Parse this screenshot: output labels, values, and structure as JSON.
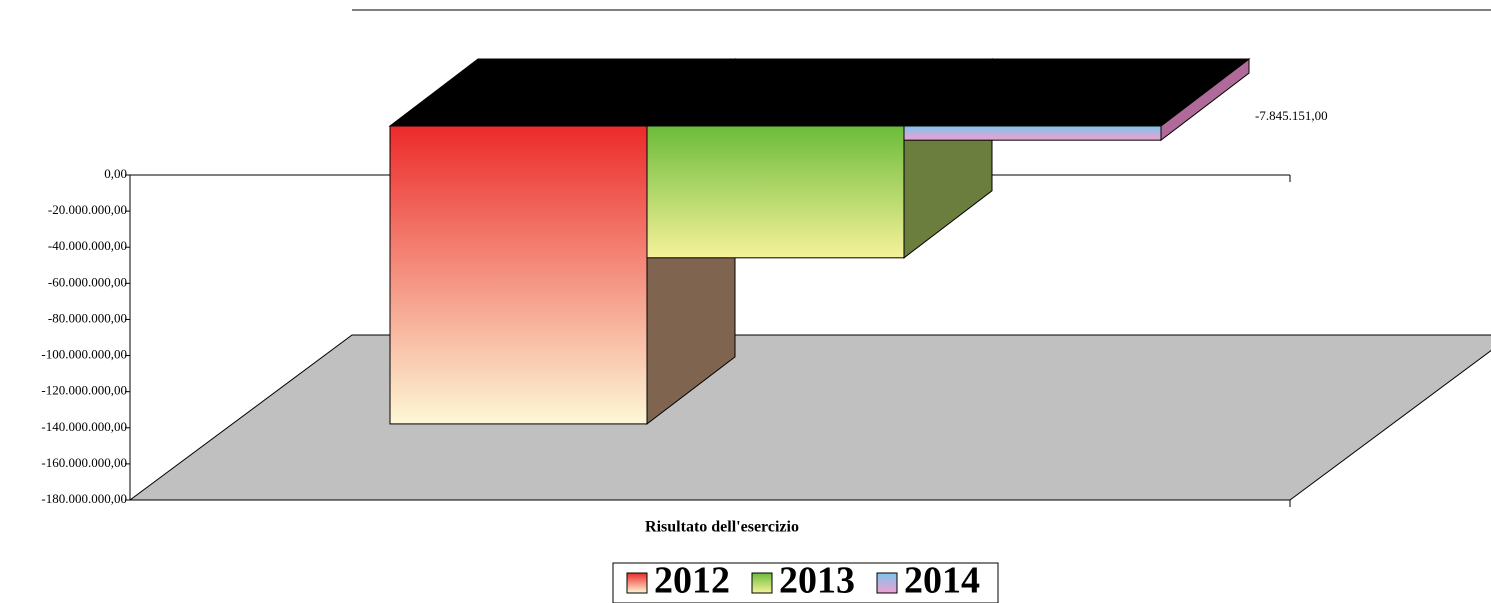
{
  "chart_data": {
    "type": "bar3d",
    "categories": [
      "Risultato dell'esercizio"
    ],
    "series": [
      {
        "name": "2012",
        "values": [
          -165000000
        ],
        "gradient": [
          "#ec2a2a",
          "#fdf8d6"
        ],
        "side_color": "#7f6450"
      },
      {
        "name": "2013",
        "values": [
          -73000000
        ],
        "gradient": [
          "#6cbc3a",
          "#f6f29a"
        ],
        "side_color": "#6b7e3e"
      },
      {
        "name": "2014",
        "values": [
          -7845151
        ],
        "gradient": [
          "#7fc4ec",
          "#f0a0d0"
        ],
        "side_color": "#b06a9a",
        "value_labels": [
          "-7.845.151,00"
        ]
      }
    ],
    "ylim": [
      -180000000,
      0
    ],
    "yticks": [
      {
        "value": 0,
        "label": "0,00"
      },
      {
        "value": -20000000,
        "label": "-20.000.000,00"
      },
      {
        "value": -40000000,
        "label": "-40.000.000,00"
      },
      {
        "value": -60000000,
        "label": "-60.000.000,00"
      },
      {
        "value": -80000000,
        "label": "-80.000.000,00"
      },
      {
        "value": -100000000,
        "label": "-100.000.000,00"
      },
      {
        "value": -120000000,
        "label": "-120.000.000,00"
      },
      {
        "value": -140000000,
        "label": "-140.000.000,00"
      },
      {
        "value": -160000000,
        "label": "-160.000.000,00"
      },
      {
        "value": -180000000,
        "label": "-180.000.000,00"
      }
    ],
    "legend": "bottom"
  }
}
